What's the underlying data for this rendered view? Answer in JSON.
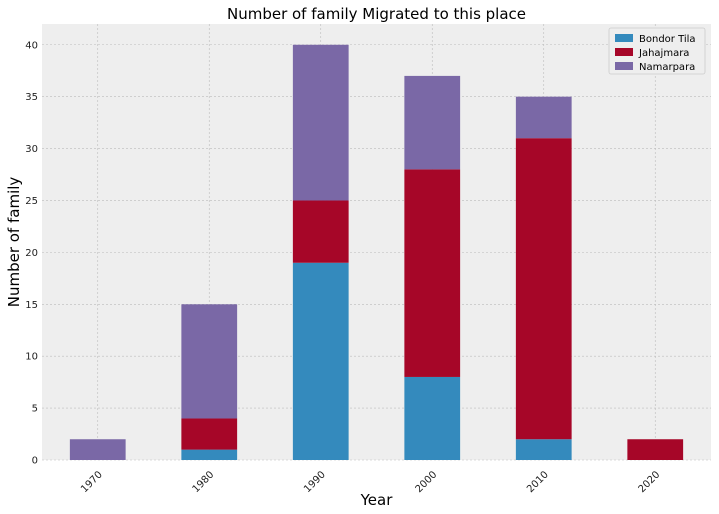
{
  "chart_data": {
    "type": "bar",
    "stacked": true,
    "title": "Number of family Migrated to this place",
    "xlabel": "Year",
    "ylabel": "Number of family",
    "categories": [
      "1970",
      "1980",
      "1990",
      "2000",
      "2010",
      "2020"
    ],
    "series": [
      {
        "name": "Bondor Tila",
        "color": "#348abd",
        "values": [
          0,
          1,
          19,
          8,
          2,
          0
        ]
      },
      {
        "name": "Jahajmara",
        "color": "#a60628",
        "values": [
          0,
          3,
          6,
          20,
          29,
          2
        ]
      },
      {
        "name": "Namarpara",
        "color": "#7a68a6",
        "values": [
          2,
          11,
          15,
          9,
          4,
          0
        ]
      }
    ],
    "ylim": [
      0,
      42
    ],
    "yticks": [
      0,
      5,
      10,
      15,
      20,
      25,
      30,
      35,
      40
    ],
    "grid": true,
    "legend_position": "top-right",
    "plot_background": "#eeeeee"
  }
}
